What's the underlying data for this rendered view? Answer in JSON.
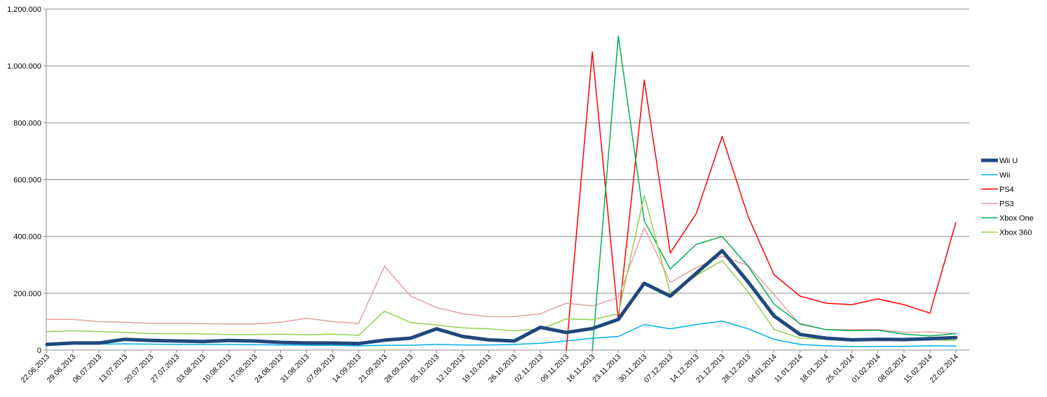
{
  "chart_data": {
    "type": "line",
    "title": "",
    "xlabel": "",
    "ylabel": "",
    "ylim": [
      0,
      1200000
    ],
    "yticks": [
      0,
      200000,
      400000,
      600000,
      800000,
      1000000,
      1200000
    ],
    "ytick_labels": [
      "0",
      "200.000",
      "400.000",
      "600.000",
      "800.000",
      "1.000.000",
      "1.200.000"
    ],
    "grid": true,
    "legend_position": "right",
    "categories": [
      "22.06.2013",
      "29.06.2013",
      "06.07.2013",
      "13.07.2013",
      "20.07.2013",
      "27.07.2013",
      "03.08.2013",
      "10.08.2013",
      "17.08.2013",
      "24.08.2013",
      "31.08.2013",
      "07.09.2013",
      "14.09.2013",
      "21.09.2013",
      "28.09.2013",
      "05.10.2013",
      "12.10.2013",
      "19.10.2013",
      "26.10.2013",
      "02.11.2013",
      "09.11.2013",
      "16.11.2013",
      "23.11.2013",
      "30.11.2013",
      "07.12.2013",
      "14.12.2013",
      "21.12.2013",
      "28.12.2013",
      "04.01.2014",
      "11.01.2014",
      "18.01.2014",
      "25.01.2014",
      "01.02.2014",
      "08.02.2014",
      "15.02.2014",
      "22.02.2014"
    ],
    "series": [
      {
        "name": "Wii U",
        "color": "#1f497d",
        "width": 5,
        "values": [
          20000,
          25000,
          25000,
          38000,
          34000,
          32000,
          30000,
          34000,
          32000,
          27000,
          25000,
          25000,
          23000,
          35000,
          42000,
          75000,
          48000,
          36000,
          32000,
          80000,
          62000,
          76000,
          108000,
          235000,
          190000,
          270000,
          350000,
          240000,
          120000,
          55000,
          42000,
          36000,
          38000,
          37000,
          40000,
          44000
        ]
      },
      {
        "name": "Wii",
        "color": "#00b0f0",
        "width": 1.5,
        "values": [
          23000,
          22000,
          21000,
          22000,
          21000,
          20000,
          20000,
          20000,
          19000,
          18000,
          17000,
          17000,
          15000,
          17000,
          17000,
          20000,
          18000,
          18000,
          20000,
          24000,
          32000,
          42000,
          48000,
          90000,
          75000,
          90000,
          102000,
          75000,
          38000,
          20000,
          15000,
          12000,
          13000,
          13000,
          15000,
          14000
        ]
      },
      {
        "name": "PS4",
        "color": "#ff0000",
        "width": 1.5,
        "values": [
          null,
          null,
          null,
          null,
          null,
          null,
          null,
          null,
          null,
          null,
          null,
          null,
          null,
          null,
          null,
          null,
          null,
          null,
          null,
          null,
          0,
          1050000,
          105000,
          950000,
          342000,
          480000,
          752000,
          470000,
          265000,
          190000,
          165000,
          160000,
          180000,
          160000,
          130000,
          450000
        ]
      },
      {
        "name": "PS3",
        "color": "#e6a0a0",
        "width": 1.5,
        "values": [
          108000,
          108000,
          100000,
          98000,
          94000,
          94000,
          93000,
          92000,
          92000,
          98000,
          112000,
          100000,
          94000,
          295000,
          190000,
          150000,
          128000,
          118000,
          118000,
          128000,
          165000,
          155000,
          185000,
          432000,
          238000,
          290000,
          330000,
          298000,
          195000,
          90000,
          72000,
          72000,
          72000,
          62000,
          64000,
          58000
        ]
      },
      {
        "name": "Xbox One",
        "color": "#00b050",
        "width": 1.5,
        "values": [
          null,
          null,
          null,
          null,
          null,
          null,
          null,
          null,
          null,
          null,
          null,
          null,
          null,
          null,
          null,
          null,
          null,
          null,
          null,
          null,
          null,
          0,
          1105000,
          455000,
          285000,
          372000,
          400000,
          295000,
          162000,
          93000,
          72000,
          68000,
          70000,
          56000,
          50000,
          58000
        ]
      },
      {
        "name": "Xbox 360",
        "color": "#92d050",
        "width": 1.5,
        "values": [
          65000,
          68000,
          65000,
          62000,
          58000,
          58000,
          57000,
          55000,
          55000,
          56000,
          54000,
          56000,
          52000,
          137000,
          97000,
          88000,
          78000,
          75000,
          68000,
          74000,
          110000,
          107000,
          128000,
          545000,
          200000,
          262000,
          315000,
          205000,
          73000,
          42000,
          38000,
          38000,
          38000,
          34000,
          36000,
          34000
        ]
      }
    ]
  }
}
